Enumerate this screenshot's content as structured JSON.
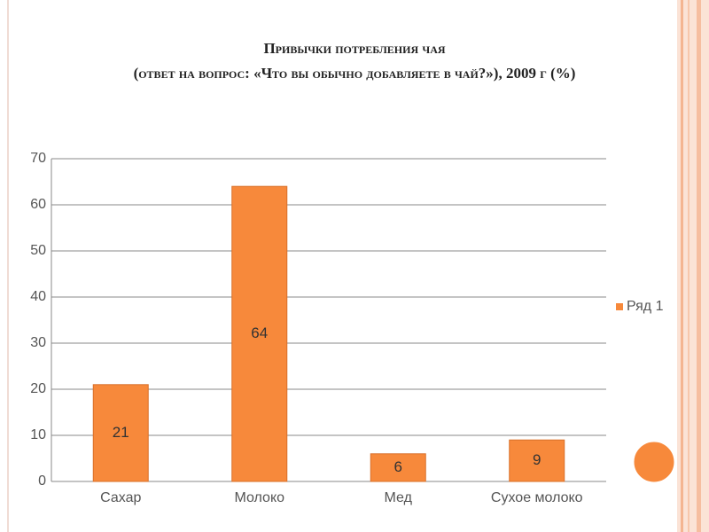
{
  "chart_data": {
    "type": "bar",
    "title": "Привычки потребления чая",
    "subtitle": "(ответ на вопрос: «Что вы обычно добавляете в  чай?»),  2009 г (%)",
    "categories": [
      "Сахар",
      "Молоко",
      "Мед",
      "Сухое молоко"
    ],
    "series": [
      {
        "name": "Ряд 1",
        "color": "#f7893b",
        "values": [
          21,
          64,
          6,
          9
        ]
      }
    ],
    "ylim": [
      0,
      70
    ],
    "yticks": [
      0,
      10,
      20,
      30,
      40,
      50,
      60,
      70
    ],
    "grid": true,
    "legend": "right",
    "data_labels": true
  }
}
